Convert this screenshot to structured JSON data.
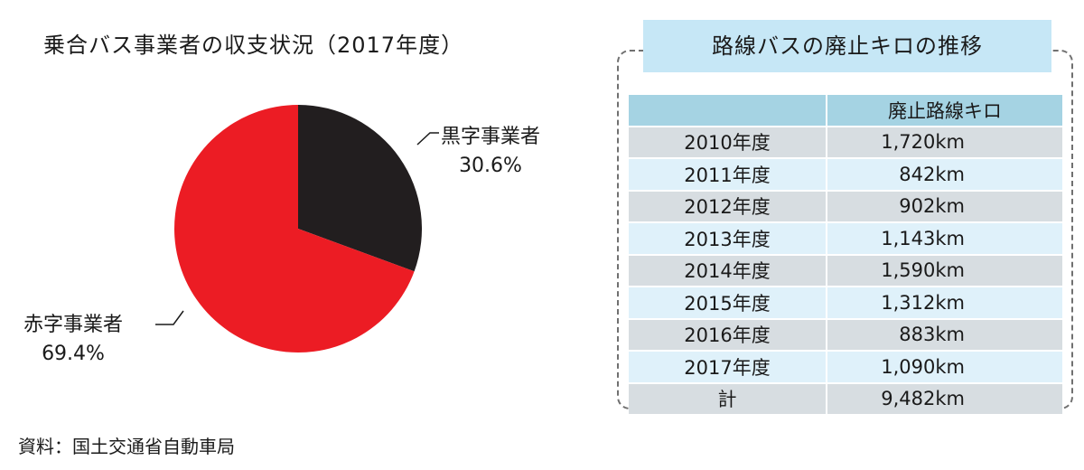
{
  "pie": {
    "title": "乗合バス事業者の収支状況（2017年度）",
    "source": "資料：国土交通省自動車局"
  },
  "table": {
    "title": "路線バスの廃止キロの推移",
    "header_year": "",
    "header_value": "廃止路線キロ",
    "rows": [
      {
        "year": "2010年度",
        "value": "1,720km"
      },
      {
        "year": "2011年度",
        "value": "842km"
      },
      {
        "year": "2012年度",
        "value": "902km"
      },
      {
        "year": "2013年度",
        "value": "1,143km"
      },
      {
        "year": "2014年度",
        "value": "1,590km"
      },
      {
        "year": "2015年度",
        "value": "1,312km"
      },
      {
        "year": "2016年度",
        "value": "883km"
      },
      {
        "year": "2017年度",
        "value": "1,090km"
      },
      {
        "year": "計",
        "value": "9,482km"
      }
    ]
  },
  "chart_data": [
    {
      "type": "pie",
      "title": "乗合バス事業者の収支状況（2017年度）",
      "slices": [
        {
          "name": "黒字事業者",
          "value": 30.6,
          "label": "30.6%",
          "color": "#221e1f"
        },
        {
          "name": "赤字事業者",
          "value": 69.4,
          "label": "69.4%",
          "color": "#ec1c24"
        }
      ]
    },
    {
      "type": "table",
      "title": "路線バスの廃止キロの推移",
      "columns": [
        "",
        "廃止路線キロ"
      ],
      "rows": [
        [
          "2010年度",
          "1,720km"
        ],
        [
          "2011年度",
          "842km"
        ],
        [
          "2012年度",
          "902km"
        ],
        [
          "2013年度",
          "1,143km"
        ],
        [
          "2014年度",
          "1,590km"
        ],
        [
          "2015年度",
          "1,312km"
        ],
        [
          "2016年度",
          "883km"
        ],
        [
          "2017年度",
          "1,090km"
        ],
        [
          "計",
          "9,482km"
        ]
      ]
    }
  ]
}
